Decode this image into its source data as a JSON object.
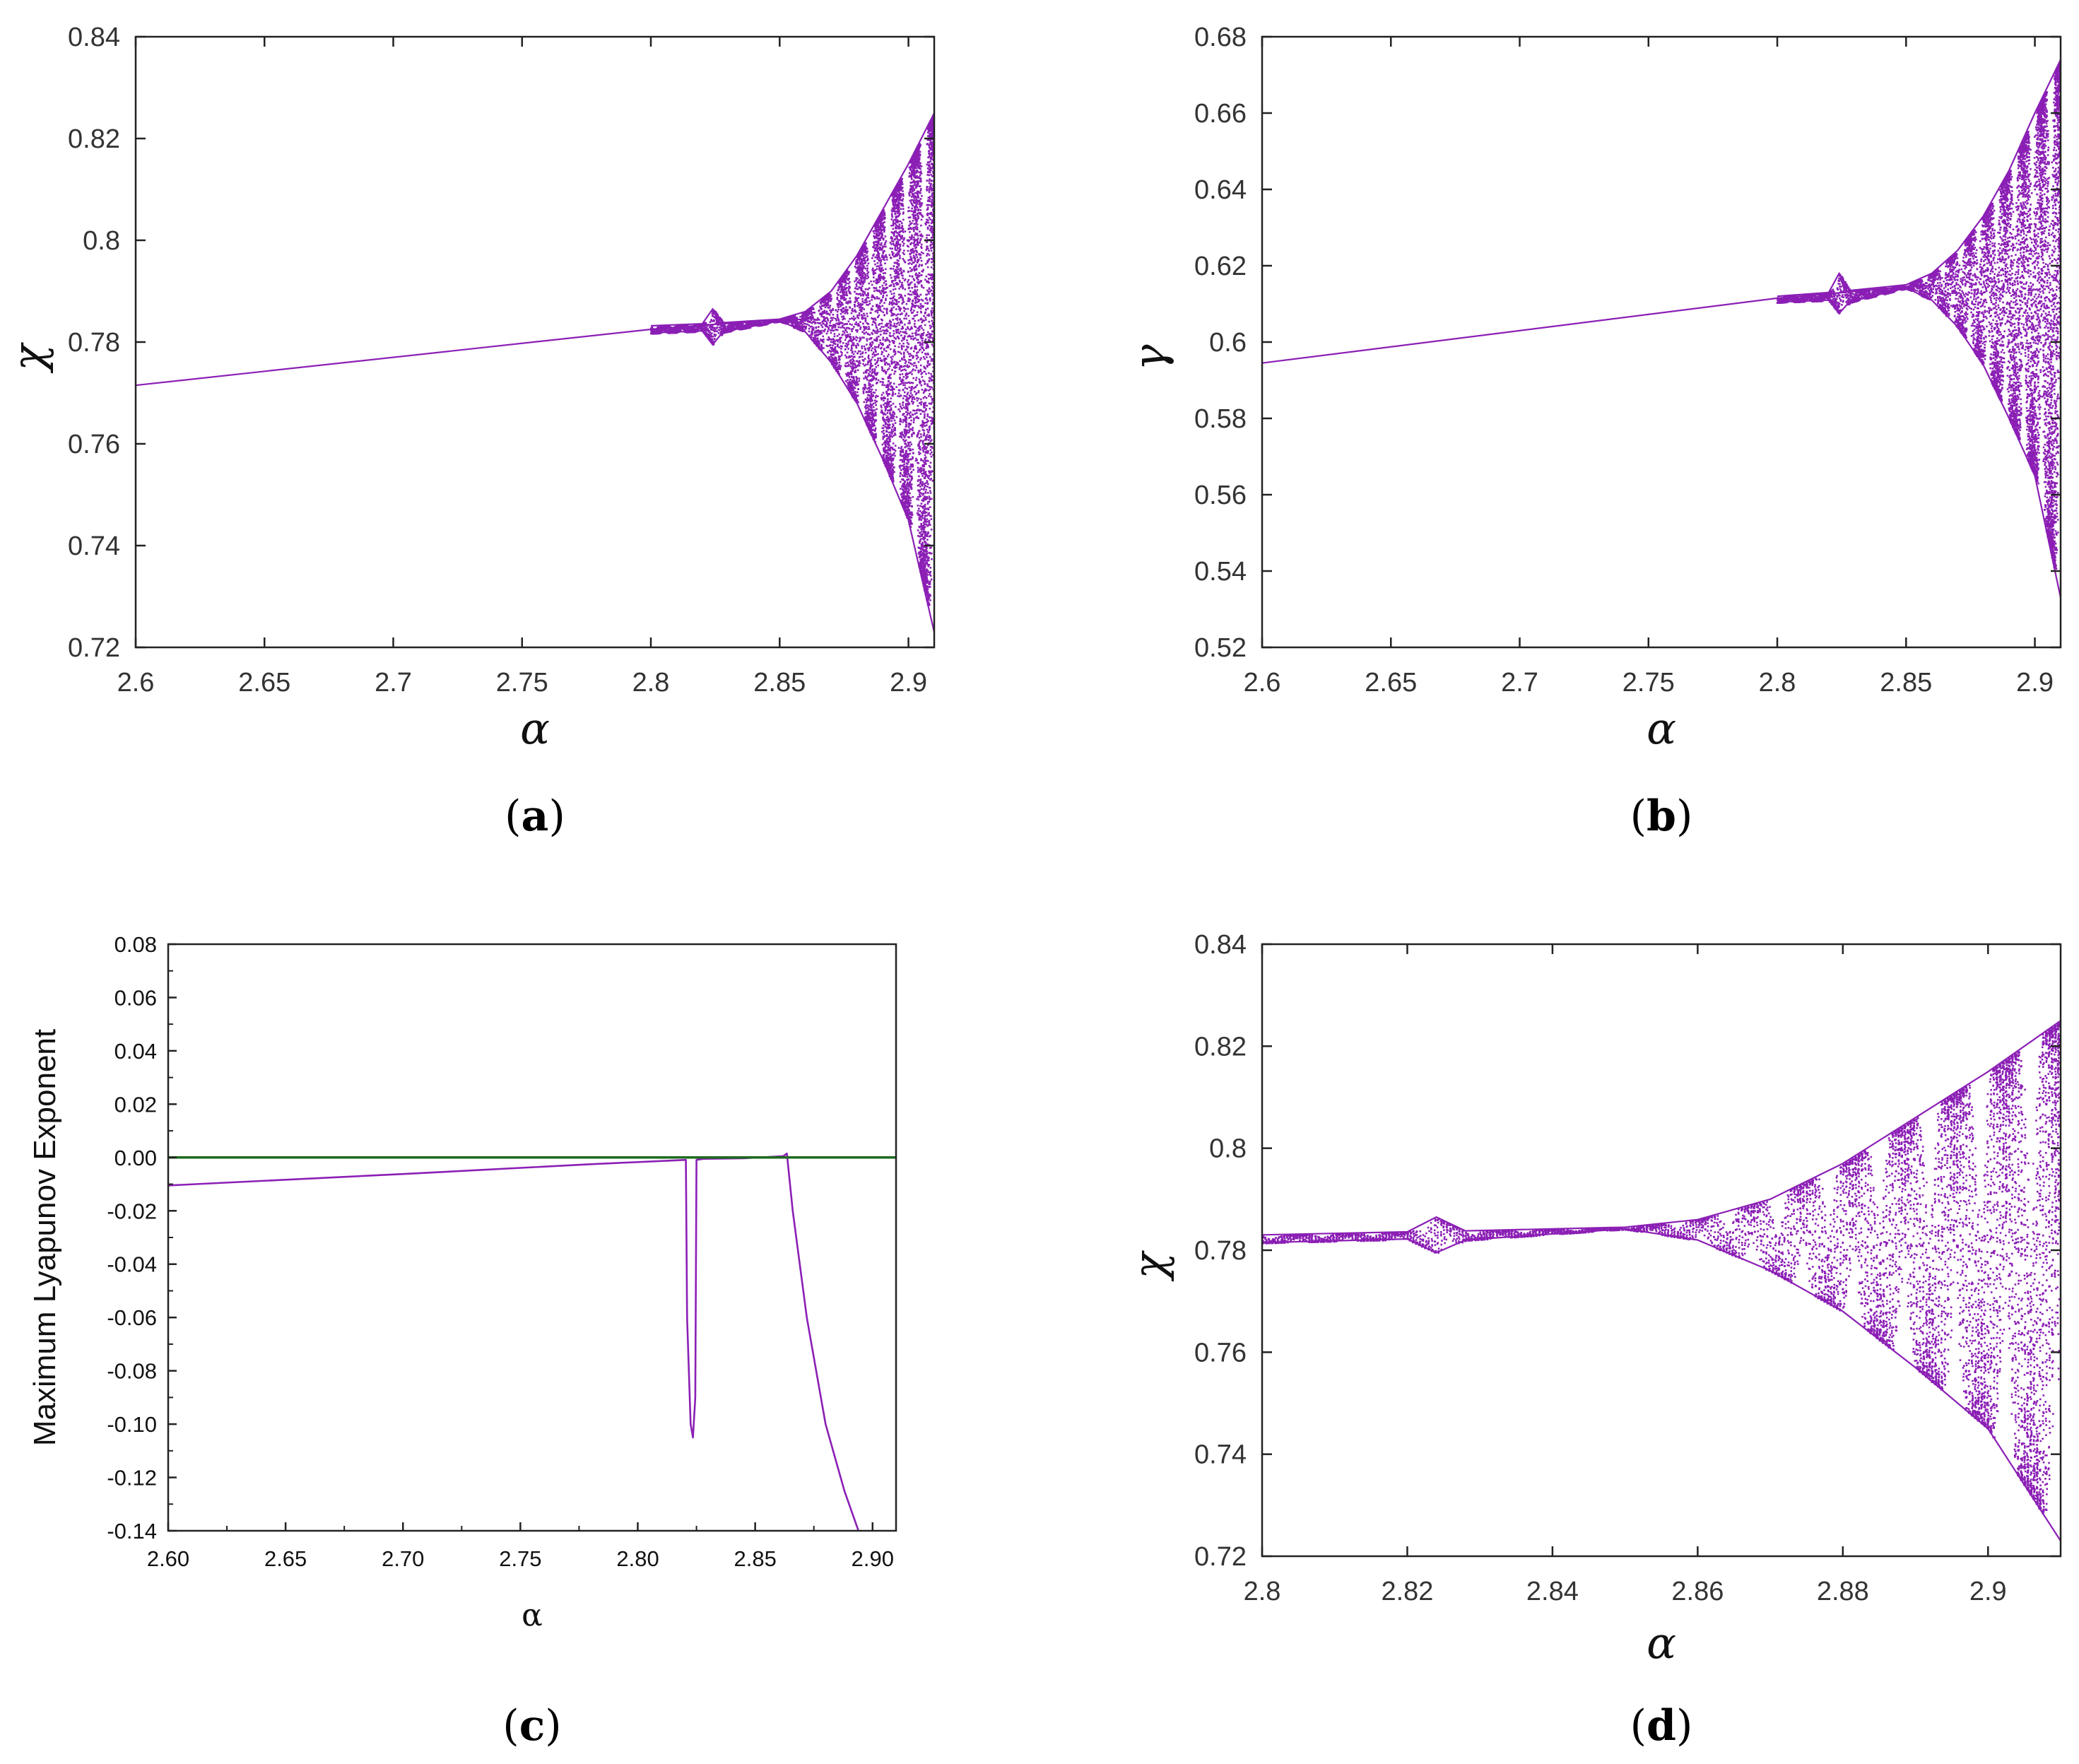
{
  "figure": {
    "colors": {
      "series": "#8B1FB5",
      "zero_line": "#1E6B1E",
      "axis": "#222222"
    }
  },
  "chart_data": [
    {
      "id": "a",
      "type": "scatter",
      "caption": {
        "open": "(",
        "letter": "a",
        "close": ")"
      },
      "xlabel": "α",
      "ylabel": "χ",
      "xlim": [
        2.6,
        2.91
      ],
      "ylim": [
        0.72,
        0.84
      ],
      "xticks": [
        2.6,
        2.65,
        2.7,
        2.75,
        2.8,
        2.85,
        2.9
      ],
      "xtick_labels": [
        "2.6",
        "2.65",
        "2.7",
        "2.75",
        "2.8",
        "2.85",
        "2.9"
      ],
      "yticks": [
        0.72,
        0.74,
        0.76,
        0.78,
        0.8,
        0.82,
        0.84
      ],
      "ytick_labels": [
        "0.72",
        "0.74",
        "0.76",
        "0.78",
        "0.8",
        "0.82",
        "0.84"
      ],
      "series": [
        {
          "name": "bifurcation",
          "points": [
            [
              2.6,
              0.7715
            ],
            [
              2.8,
              0.7825
            ],
            [
              2.8225,
              0.7834
            ],
            [
              2.85,
              0.7843
            ],
            [
              2.86,
              0.7845
            ]
          ]
        },
        {
          "name": "upper envelope",
          "points": [
            [
              2.8,
              0.7832
            ],
            [
              2.82,
              0.7836
            ],
            [
              2.824,
              0.7865
            ],
            [
              2.828,
              0.7838
            ],
            [
              2.85,
              0.7845
            ],
            [
              2.86,
              0.786
            ],
            [
              2.87,
              0.79
            ],
            [
              2.88,
              0.797
            ],
            [
              2.89,
              0.806
            ],
            [
              2.9,
              0.815
            ],
            [
              2.91,
              0.825
            ]
          ]
        },
        {
          "name": "lower envelope",
          "points": [
            [
              2.8,
              0.7818
            ],
            [
              2.82,
              0.7822
            ],
            [
              2.824,
              0.7795
            ],
            [
              2.828,
              0.782
            ],
            [
              2.85,
              0.7842
            ],
            [
              2.86,
              0.782
            ],
            [
              2.87,
              0.776
            ],
            [
              2.88,
              0.768
            ],
            [
              2.89,
              0.757
            ],
            [
              2.9,
              0.745
            ],
            [
              2.91,
              0.723
            ]
          ]
        }
      ]
    },
    {
      "id": "b",
      "type": "scatter",
      "caption": {
        "open": "(",
        "letter": "b",
        "close": ")"
      },
      "xlabel": "α",
      "ylabel": "γ",
      "xlim": [
        2.6,
        2.91
      ],
      "ylim": [
        0.52,
        0.68
      ],
      "xticks": [
        2.6,
        2.65,
        2.7,
        2.75,
        2.8,
        2.85,
        2.9
      ],
      "xtick_labels": [
        "2.6",
        "2.65",
        "2.7",
        "2.75",
        "2.8",
        "2.85",
        "2.9"
      ],
      "yticks": [
        0.52,
        0.54,
        0.56,
        0.58,
        0.6,
        0.62,
        0.64,
        0.66,
        0.68
      ],
      "ytick_labels": [
        "0.52",
        "0.54",
        "0.56",
        "0.58",
        "0.6",
        "0.62",
        "0.64",
        "0.66",
        "0.68"
      ],
      "series": [
        {
          "name": "bifurcation",
          "points": [
            [
              2.6,
              0.5945
            ],
            [
              2.8,
              0.6115
            ],
            [
              2.8225,
              0.6128
            ],
            [
              2.85,
              0.6145
            ],
            [
              2.86,
              0.6148
            ]
          ]
        },
        {
          "name": "upper envelope",
          "points": [
            [
              2.8,
              0.612
            ],
            [
              2.82,
              0.613
            ],
            [
              2.824,
              0.618
            ],
            [
              2.828,
              0.6135
            ],
            [
              2.85,
              0.615
            ],
            [
              2.86,
              0.618
            ],
            [
              2.87,
              0.624
            ],
            [
              2.88,
              0.633
            ],
            [
              2.89,
              0.645
            ],
            [
              2.9,
              0.66
            ],
            [
              2.91,
              0.674
            ]
          ]
        },
        {
          "name": "lower envelope",
          "points": [
            [
              2.8,
              0.6105
            ],
            [
              2.82,
              0.611
            ],
            [
              2.824,
              0.6075
            ],
            [
              2.828,
              0.6105
            ],
            [
              2.85,
              0.6142
            ],
            [
              2.86,
              0.611
            ],
            [
              2.87,
              0.604
            ],
            [
              2.88,
              0.594
            ],
            [
              2.89,
              0.58
            ],
            [
              2.9,
              0.565
            ],
            [
              2.91,
              0.533
            ]
          ]
        }
      ]
    },
    {
      "id": "c",
      "type": "line",
      "caption": {
        "open": "(",
        "letter": "c",
        "close": ")"
      },
      "xlabel": "α",
      "ylabel": "Maximum  Lyapunov Exponent",
      "xlim": [
        2.6,
        2.91
      ],
      "ylim": [
        -0.14,
        0.08
      ],
      "xticks": [
        2.6,
        2.65,
        2.7,
        2.75,
        2.8,
        2.85,
        2.9
      ],
      "xtick_labels": [
        "2.60",
        "2.65",
        "2.70",
        "2.75",
        "2.80",
        "2.85",
        "2.90"
      ],
      "yticks": [
        -0.14,
        -0.12,
        -0.1,
        -0.08,
        -0.06,
        -0.04,
        -0.02,
        0.0,
        0.02,
        0.04,
        0.06,
        0.08
      ],
      "ytick_labels": [
        "-0.14",
        "-0.12",
        "-0.10",
        "-0.08",
        "-0.06",
        "-0.04",
        "-0.02",
        "0.00",
        "0.02",
        "0.04",
        "0.06",
        "0.08"
      ],
      "series": [
        {
          "name": "Lyapunov exponent",
          "color": "#8B1FB5",
          "points": [
            [
              2.6,
              -0.0105
            ],
            [
              2.7,
              -0.0062
            ],
            [
              2.78,
              -0.0025
            ],
            [
              2.8205,
              -0.0009
            ],
            [
              2.821,
              -0.06
            ],
            [
              2.8225,
              -0.1
            ],
            [
              2.8235,
              -0.105
            ],
            [
              2.8245,
              -0.09
            ],
            [
              2.825,
              -0.0009
            ],
            [
              2.828,
              -0.0005
            ],
            [
              2.845,
              -0.0003
            ],
            [
              2.862,
              0.0005
            ],
            [
              2.8635,
              0.0015
            ],
            [
              2.866,
              -0.02
            ],
            [
              2.872,
              -0.06
            ],
            [
              2.88,
              -0.1
            ],
            [
              2.888,
              -0.125
            ],
            [
              2.894,
              -0.14
            ]
          ]
        },
        {
          "name": "zero line",
          "color": "#1E6B1E",
          "points": [
            [
              2.6,
              0.0
            ],
            [
              2.91,
              0.0
            ]
          ]
        }
      ]
    },
    {
      "id": "d",
      "type": "scatter",
      "caption": {
        "open": "(",
        "letter": "d",
        "close": ")"
      },
      "xlabel": "α",
      "ylabel": "χ",
      "xlim": [
        2.8,
        2.91
      ],
      "ylim": [
        0.72,
        0.84
      ],
      "xticks": [
        2.8,
        2.82,
        2.84,
        2.86,
        2.88,
        2.9
      ],
      "xtick_labels": [
        "2.8",
        "2.82",
        "2.84",
        "2.86",
        "2.88",
        "2.9"
      ],
      "yticks": [
        0.72,
        0.74,
        0.76,
        0.78,
        0.8,
        0.82,
        0.84
      ],
      "ytick_labels": [
        "0.72",
        "0.74",
        "0.76",
        "0.78",
        "0.8",
        "0.82",
        "0.84"
      ],
      "series": [
        {
          "name": "upper envelope",
          "points": [
            [
              2.8,
              0.783
            ],
            [
              2.82,
              0.7836
            ],
            [
              2.824,
              0.7865
            ],
            [
              2.828,
              0.7838
            ],
            [
              2.85,
              0.7845
            ],
            [
              2.86,
              0.786
            ],
            [
              2.87,
              0.79
            ],
            [
              2.88,
              0.797
            ],
            [
              2.89,
              0.806
            ],
            [
              2.9,
              0.815
            ],
            [
              2.91,
              0.825
            ]
          ]
        },
        {
          "name": "lower envelope",
          "points": [
            [
              2.8,
              0.7815
            ],
            [
              2.82,
              0.7822
            ],
            [
              2.824,
              0.7795
            ],
            [
              2.828,
              0.782
            ],
            [
              2.85,
              0.7842
            ],
            [
              2.86,
              0.782
            ],
            [
              2.87,
              0.776
            ],
            [
              2.88,
              0.768
            ],
            [
              2.89,
              0.757
            ],
            [
              2.9,
              0.745
            ],
            [
              2.91,
              0.723
            ]
          ]
        }
      ]
    }
  ]
}
